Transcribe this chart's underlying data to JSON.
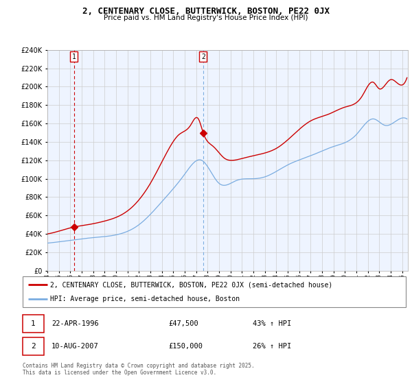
{
  "title": "2, CENTENARY CLOSE, BUTTERWICK, BOSTON, PE22 0JX",
  "subtitle": "Price paid vs. HM Land Registry's House Price Index (HPI)",
  "ylim": [
    0,
    240000
  ],
  "yticks": [
    0,
    20000,
    40000,
    60000,
    80000,
    100000,
    120000,
    140000,
    160000,
    180000,
    200000,
    220000,
    240000
  ],
  "xlim_start": 1994.0,
  "xlim_end": 2025.5,
  "sale1_date": 1996.31,
  "sale1_price": 47500,
  "sale2_date": 2007.61,
  "sale2_price": 150000,
  "legend_line1": "2, CENTENARY CLOSE, BUTTERWICK, BOSTON, PE22 0JX (semi-detached house)",
  "legend_line2": "HPI: Average price, semi-detached house, Boston",
  "footer": "Contains HM Land Registry data © Crown copyright and database right 2025.\nThis data is licensed under the Open Government Licence v3.0.",
  "line_color_red": "#cc0000",
  "line_color_blue": "#7aace0",
  "shade_color": "#ddeeff",
  "grid_color": "#cccccc",
  "bg_color": "#eef4ff"
}
